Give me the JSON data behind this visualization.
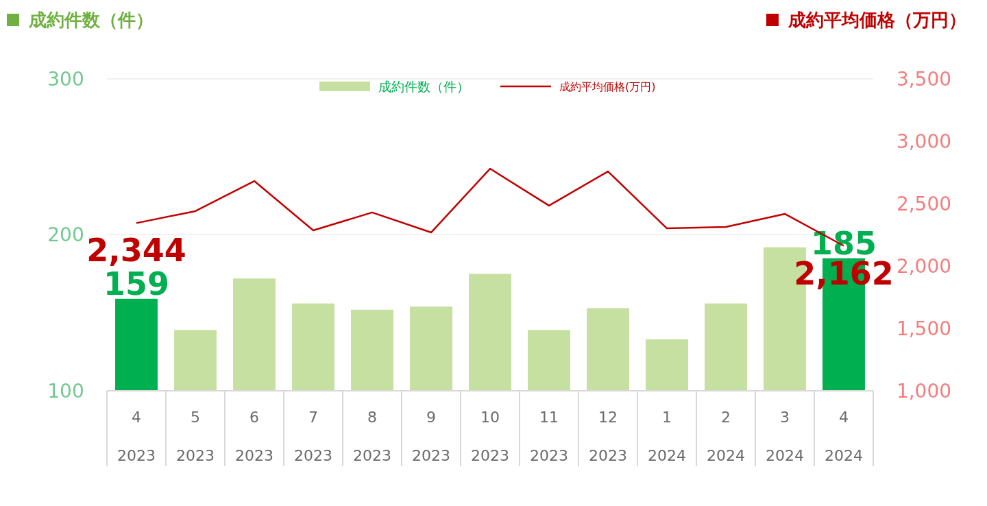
{
  "chart_data": {
    "type": "bar",
    "ylabel": "成約件数（件）",
    "y2label": "成約平均価格（万円）",
    "categories": [
      "4\n2023",
      "5\n2023",
      "6\n2023",
      "7\n2023",
      "8\n2023",
      "9\n2023",
      "10\n2023",
      "11\n2023",
      "12\n2023",
      "1\n2024",
      "2\n2024",
      "3\n2024",
      "4\n2024"
    ],
    "series": [
      {
        "name": "成約件数（件）",
        "color": "#c5e0a0",
        "colors": [
          "#00b050",
          "#c5e0a0",
          "#c5e0a0",
          "#c5e0a0",
          "#c5e0a0",
          "#c5e0a0",
          "#c5e0a0",
          "#c5e0a0",
          "#c5e0a0",
          "#c5e0a0",
          "#c5e0a0",
          "#c5e0a0",
          "#00b050"
        ],
        "values": [
          159,
          139,
          172,
          156,
          152,
          154,
          175,
          139,
          153,
          133,
          156,
          192,
          185
        ],
        "value_labels": [
          "159",
          null,
          null,
          null,
          null,
          null,
          null,
          null,
          null,
          null,
          null,
          null,
          "185"
        ]
      },
      {
        "name": "成約平均価格(万円)",
        "type": "line",
        "axis": "y2",
        "color": "#c00000",
        "values": [
          2344,
          2440,
          2681,
          2286,
          2429,
          2269,
          2780,
          2484,
          2758,
          2302,
          2313,
          2418,
          2162
        ],
        "value_labels": [
          "2,344",
          null,
          null,
          null,
          null,
          null,
          null,
          null,
          null,
          null,
          null,
          null,
          "2,162"
        ]
      }
    ],
    "ylim": [
      100,
      300
    ],
    "yticks": [
      100,
      200,
      300
    ],
    "y2lim": [
      1000,
      3500
    ],
    "y2ticks": [
      {
        "value": 1000,
        "label": "1,000"
      },
      {
        "value": 1500,
        "label": "1,500"
      },
      {
        "value": 2000,
        "label": "2,000"
      },
      {
        "value": 2500,
        "label": "2,500"
      },
      {
        "value": 3000,
        "label": "3,000"
      },
      {
        "value": 3500,
        "label": "3,500"
      }
    ],
    "grid": "y",
    "legend": "top",
    "marker": "none",
    "line_style": "solid"
  }
}
